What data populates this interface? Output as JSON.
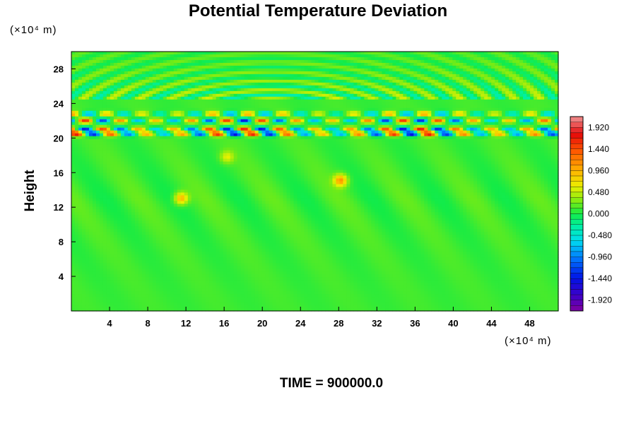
{
  "chart_data": {
    "type": "heatmap",
    "title": "Potential Temperature Deviation",
    "ylabel": "Height",
    "x_unit_label": "(×10⁴ m)",
    "y_unit_label": "(×10⁴ m)",
    "footer": "TIME = 900000.0",
    "xlim": [
      0,
      51
    ],
    "ylim": [
      0,
      30
    ],
    "x_ticks": [
      4,
      8,
      12,
      16,
      20,
      24,
      28,
      32,
      36,
      40,
      44,
      48
    ],
    "y_ticks": [
      4,
      8,
      12,
      16,
      20,
      24,
      28
    ],
    "colorbar": {
      "range": [
        -2.16,
        2.16
      ],
      "labels": [
        "1.920",
        "1.440",
        "0.960",
        "0.480",
        "0.000",
        "-0.480",
        "-0.960",
        "-1.440",
        "-1.920"
      ],
      "label_values": [
        1.92,
        1.44,
        0.96,
        0.48,
        0.0,
        -0.48,
        -0.96,
        -1.44,
        -1.92
      ],
      "levels": 36
    },
    "features": {
      "background_value": 0.1,
      "wave_band_bottom": 20,
      "wave_band_top": 24.5,
      "strong_layers": [
        {
          "y": 20.5,
          "amplitude": 1.9
        },
        {
          "y": 21.0,
          "amplitude": 1.6
        },
        {
          "y": 22.0,
          "amplitude": 1.5
        },
        {
          "y": 22.8,
          "amplitude": 1.1
        }
      ],
      "hot_spots": [
        {
          "x": 11.5,
          "y": 13.0,
          "value": 0.9
        },
        {
          "x": 28.2,
          "y": 15.1,
          "value": 1.0
        },
        {
          "x": 16.3,
          "y": 17.8,
          "value": 0.5
        }
      ],
      "upper_waves": {
        "from": 24.5,
        "to": 30,
        "amplitude": 0.45,
        "center_x": 21
      }
    }
  }
}
